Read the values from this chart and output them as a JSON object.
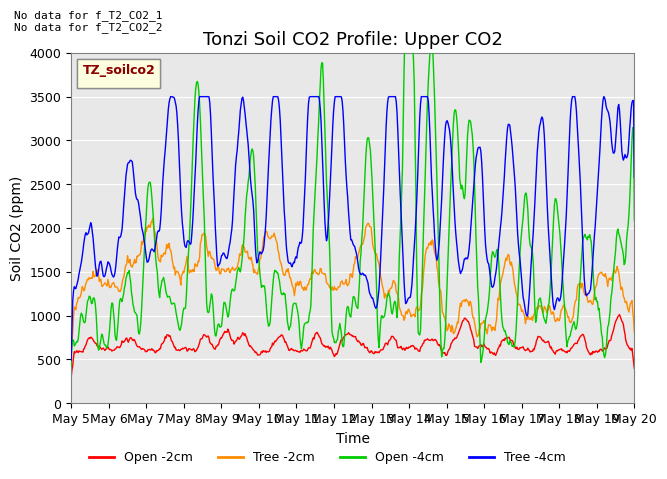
{
  "title": "Tonzi Soil CO2 Profile: Upper CO2",
  "xlabel": "Time",
  "ylabel": "Soil CO2 (ppm)",
  "ylim": [
    0,
    4000
  ],
  "xlim_days": [
    0,
    15
  ],
  "x_tick_labels": [
    "May 5",
    "May 6",
    "May 7",
    "May 8",
    "May 9",
    "May 10",
    "May 11",
    "May 12",
    "May 13",
    "May 14",
    "May 15",
    "May 16",
    "May 17",
    "May 18",
    "May 19",
    "May 20"
  ],
  "colors": {
    "open_2cm": "#FF0000",
    "tree_2cm": "#FF8C00",
    "open_4cm": "#00CC00",
    "tree_4cm": "#0000FF"
  },
  "legend_labels": [
    "Open -2cm",
    "Tree -2cm",
    "Open -4cm",
    "Tree -4cm"
  ],
  "annotation_text": "No data for f_T2_CO2_1\nNo data for f_T2_CO2_2",
  "legend_box_label": "TZ_soilco2",
  "background_color": "#E8E8E8",
  "title_fontsize": 13,
  "axis_fontsize": 10,
  "tick_fontsize": 9
}
